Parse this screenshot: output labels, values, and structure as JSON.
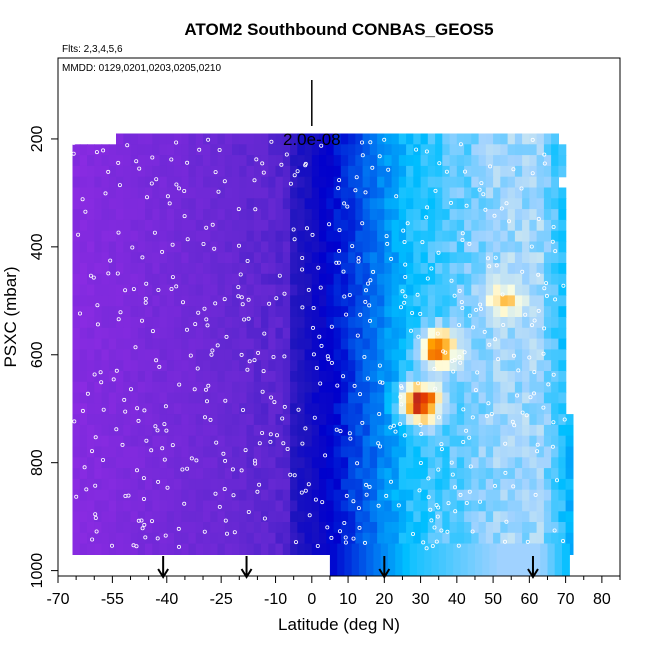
{
  "chart_data": {
    "type": "heatmap",
    "title": "ATOM2 Southbound CONBAS_GEOS5",
    "flights_note": "Flts: 2,3,4,5,6",
    "dates_note": "MMDD: 0129,0201,0203,0205,0210",
    "xlabel": "Latitude (deg N)",
    "ylabel": "PSXC (mbar)",
    "xlim": [
      -70,
      85
    ],
    "ylim": [
      1010,
      50
    ],
    "y_reversed": true,
    "x_ticks": [
      -70,
      -55,
      -40,
      -25,
      -10,
      0,
      10,
      20,
      30,
      40,
      50,
      60,
      70,
      80
    ],
    "x_tick_labels": [
      "-70",
      "-55",
      "-40",
      "-25",
      "-10",
      "0",
      "10",
      "20",
      "30",
      "40",
      "50",
      "60",
      "70",
      "80"
    ],
    "x_minor_ticks": [
      -65,
      -60,
      -50,
      -45,
      -35,
      -30,
      -20,
      -15,
      -5,
      5,
      15,
      25,
      35,
      45,
      55,
      65,
      75,
      85
    ],
    "y_ticks": [
      200,
      400,
      600,
      800,
      1000
    ],
    "y_tick_labels": [
      "200",
      "400",
      "600",
      "800",
      "1000"
    ],
    "scale_bar_label": "2.0e-08",
    "scale_bar_x": 0,
    "flight_markers_lat": [
      -41,
      -18,
      20,
      61
    ],
    "colors": {
      "low": "#8a2be2",
      "mid_low": "#0000cd",
      "mid": "#00bfff",
      "mid_high": "#ffffe0",
      "high": "#ff8c00",
      "peak": "#b22222"
    },
    "hotspots": [
      {
        "lat": 35,
        "p": 590,
        "value": 0.95
      },
      {
        "lat": 30,
        "p": 690,
        "value": 1.0
      },
      {
        "lat": 53,
        "p": 500,
        "value": 0.85
      },
      {
        "lat": 56,
        "p": 420,
        "value": 0.75
      },
      {
        "lat": 55,
        "p": 900,
        "value": 0.6
      }
    ]
  }
}
